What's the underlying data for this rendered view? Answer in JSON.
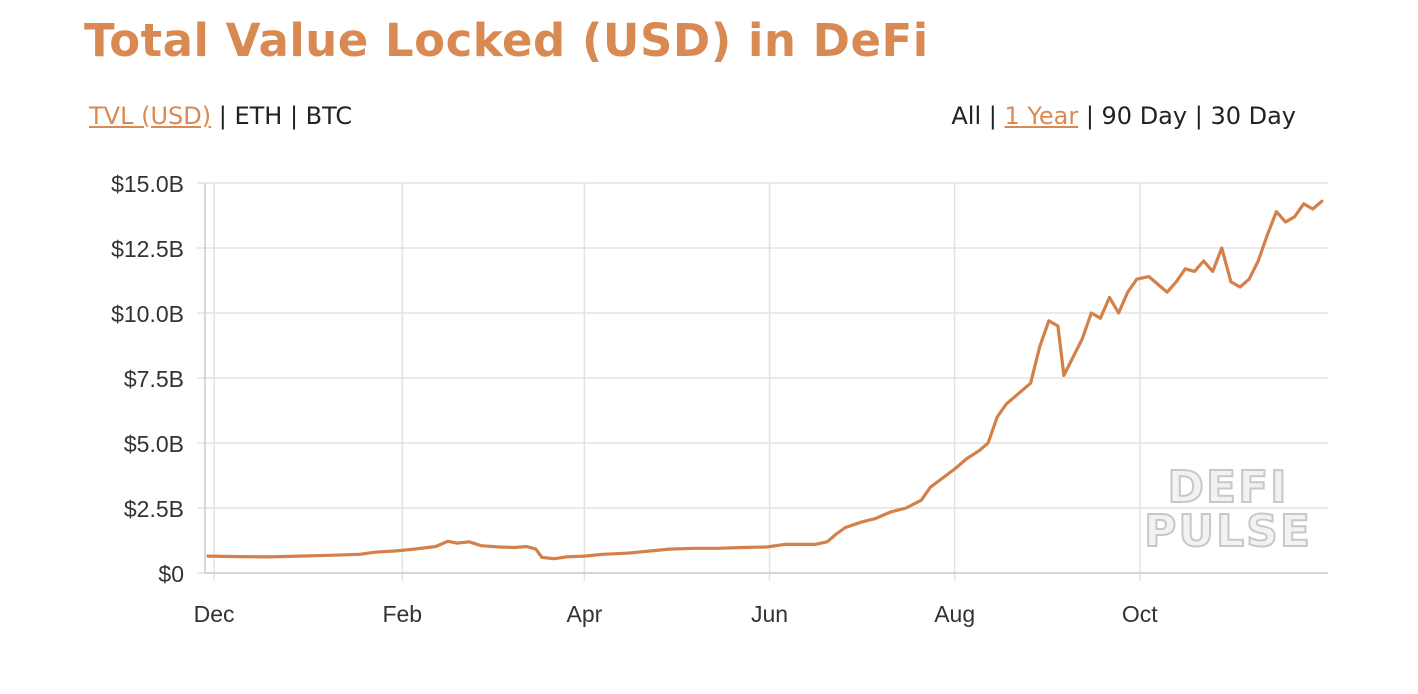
{
  "title": "Total Value Locked (USD) in DeFi",
  "metric_toggles": {
    "options": [
      "TVL (USD)",
      "ETH",
      "BTC"
    ],
    "active": "TVL (USD)",
    "separator": "|"
  },
  "range_toggles": {
    "options": [
      "All",
      "1 Year",
      "90 Day",
      "30 Day"
    ],
    "active": "1 Year",
    "separator": "|"
  },
  "watermark": {
    "line1": "DEFI",
    "line2": "PULSE"
  },
  "colors": {
    "accent": "#d98a52",
    "line": "#d4804a",
    "grid": "#e3e3e3",
    "axis_text": "#333333"
  },
  "chart_data": {
    "type": "line",
    "title": "Total Value Locked (USD) in DeFi",
    "xlabel": "",
    "ylabel": "",
    "ylim": [
      0,
      15
    ],
    "y_ticks": [
      {
        "value": 0,
        "label": "$0"
      },
      {
        "value": 2.5,
        "label": "$2.5B"
      },
      {
        "value": 5,
        "label": "$5.0B"
      },
      {
        "value": 7.5,
        "label": "$7.5B"
      },
      {
        "value": 10,
        "label": "$10.0B"
      },
      {
        "value": 12.5,
        "label": "$12.5B"
      },
      {
        "value": 15,
        "label": "$15.0B"
      }
    ],
    "x_ticks": [
      "Dec",
      "Feb",
      "Apr",
      "Jun",
      "Aug",
      "Oct"
    ],
    "x_tick_positions": [
      2,
      64,
      124,
      185,
      246,
      307
    ],
    "xlim": [
      -1,
      369
    ],
    "grid": true,
    "series": [
      {
        "values": [
          [
            0,
            0.65
          ],
          [
            10,
            0.63
          ],
          [
            20,
            0.62
          ],
          [
            30,
            0.65
          ],
          [
            40,
            0.68
          ],
          [
            50,
            0.72
          ],
          [
            55,
            0.8
          ],
          [
            62,
            0.85
          ],
          [
            68,
            0.92
          ],
          [
            75,
            1.02
          ],
          [
            79,
            1.22
          ],
          [
            82,
            1.15
          ],
          [
            86,
            1.2
          ],
          [
            90,
            1.05
          ],
          [
            96,
            1.0
          ],
          [
            101,
            0.98
          ],
          [
            105,
            1.02
          ],
          [
            108,
            0.92
          ],
          [
            110,
            0.6
          ],
          [
            114,
            0.55
          ],
          [
            118,
            0.62
          ],
          [
            124,
            0.65
          ],
          [
            130,
            0.72
          ],
          [
            138,
            0.76
          ],
          [
            146,
            0.85
          ],
          [
            152,
            0.92
          ],
          [
            160,
            0.95
          ],
          [
            168,
            0.95
          ],
          [
            176,
            0.98
          ],
          [
            184,
            1.0
          ],
          [
            190,
            1.1
          ],
          [
            195,
            1.1
          ],
          [
            200,
            1.1
          ],
          [
            204,
            1.2
          ],
          [
            207,
            1.5
          ],
          [
            210,
            1.75
          ],
          [
            215,
            1.95
          ],
          [
            220,
            2.1
          ],
          [
            225,
            2.35
          ],
          [
            230,
            2.5
          ],
          [
            235,
            2.8
          ],
          [
            238,
            3.3
          ],
          [
            242,
            3.65
          ],
          [
            246,
            4.0
          ],
          [
            250,
            4.4
          ],
          [
            254,
            4.7
          ],
          [
            257,
            5.0
          ],
          [
            260,
            6.0
          ],
          [
            263,
            6.5
          ],
          [
            266,
            6.8
          ],
          [
            268,
            7.0
          ],
          [
            271,
            7.3
          ],
          [
            274,
            8.7
          ],
          [
            277,
            9.7
          ],
          [
            280,
            9.5
          ],
          [
            282,
            7.6
          ],
          [
            285,
            8.3
          ],
          [
            288,
            9.0
          ],
          [
            291,
            10.0
          ],
          [
            294,
            9.8
          ],
          [
            297,
            10.6
          ],
          [
            300,
            10.0
          ],
          [
            303,
            10.8
          ],
          [
            306,
            11.3
          ],
          [
            310,
            11.4
          ],
          [
            313,
            11.1
          ],
          [
            316,
            10.8
          ],
          [
            319,
            11.2
          ],
          [
            322,
            11.7
          ],
          [
            325,
            11.6
          ],
          [
            328,
            12.0
          ],
          [
            331,
            11.6
          ],
          [
            334,
            12.5
          ],
          [
            337,
            11.2
          ],
          [
            340,
            11.0
          ],
          [
            343,
            11.3
          ],
          [
            346,
            12.0
          ],
          [
            349,
            13.0
          ],
          [
            352,
            13.9
          ],
          [
            355,
            13.5
          ],
          [
            358,
            13.7
          ],
          [
            361,
            14.2
          ],
          [
            364,
            14.0
          ],
          [
            367,
            14.3
          ]
        ]
      }
    ]
  }
}
